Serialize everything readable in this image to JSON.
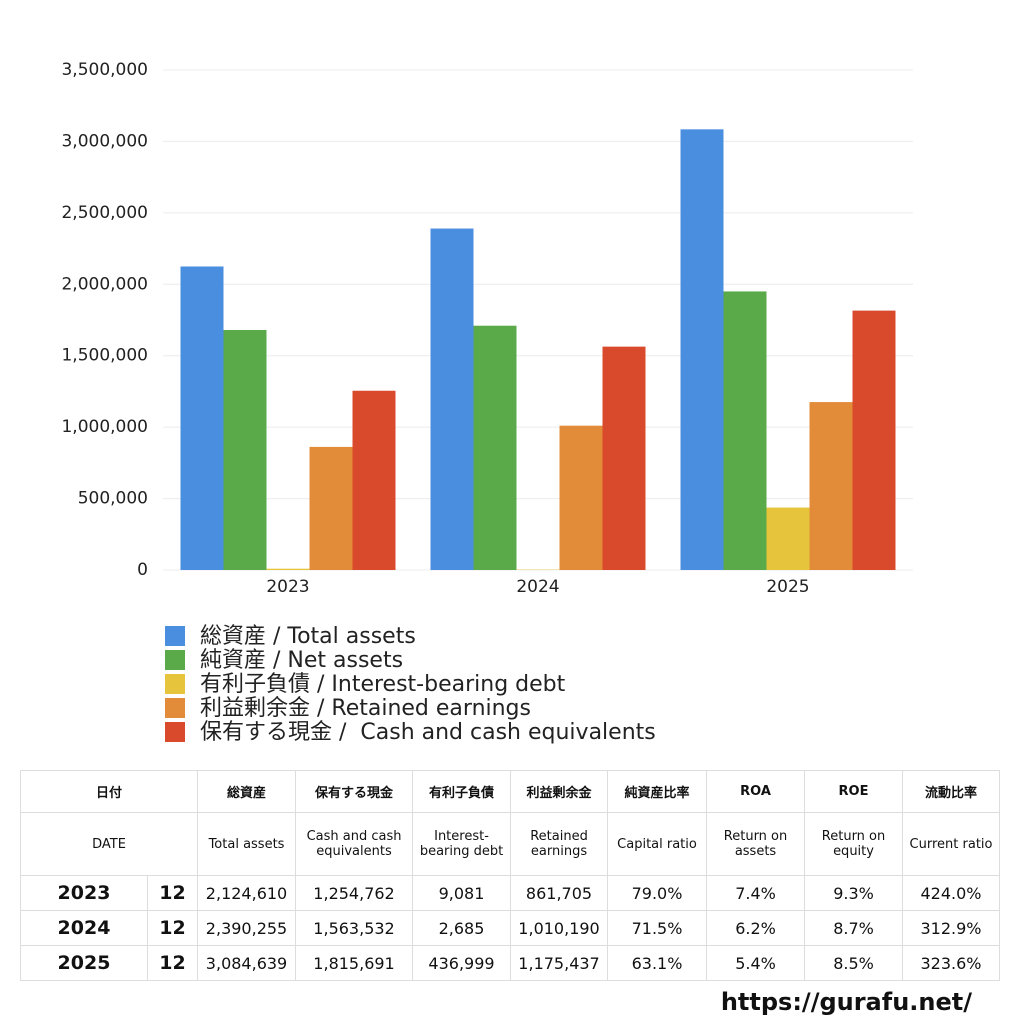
{
  "chart_data": {
    "type": "bar",
    "categories": [
      "2023",
      "2024",
      "2025"
    ],
    "series": [
      {
        "name": "総資産 / Total assets",
        "color": "#4a8ee0",
        "values": [
          2124610,
          2390255,
          3084639
        ]
      },
      {
        "name": "純資産 / Net assets",
        "color": "#5aaa4a",
        "values": [
          1680000,
          1710000,
          1950000
        ]
      },
      {
        "name": "有利子負債 / Interest-bearing debt",
        "color": "#e6c43c",
        "values": [
          9081,
          2685,
          436999
        ]
      },
      {
        "name": "利益剰余金 / Retained earnings",
        "color": "#e28c3a",
        "values": [
          861705,
          1010190,
          1175437
        ]
      },
      {
        "name": "保有する現金 /  Cash and cash equivalents",
        "color": "#d9492b",
        "values": [
          1254762,
          1563532,
          1815691
        ]
      }
    ],
    "ylim": [
      0,
      3500000
    ],
    "yticks": [
      0,
      {
        "value": 500000,
        "label": "500,000"
      },
      {
        "value": 1000000,
        "label": "1,000,000"
      },
      {
        "value": 1500000,
        "label": "1,500,000"
      },
      {
        "value": 2000000,
        "label": "2,000,000"
      },
      {
        "value": 2500000,
        "label": "2,500,000"
      },
      {
        "value": 3000000,
        "label": "3,000,000"
      },
      {
        "value": 3500000,
        "label": "3,500,000"
      }
    ],
    "grid": true
  },
  "table": {
    "header_ja": [
      "日付",
      "総資産",
      "保有する現金",
      "有利子負債",
      "利益剰余金",
      "純資産比率",
      "ROA",
      "ROE",
      "流動比率"
    ],
    "header_en": [
      "DATE",
      "Total assets",
      "Cash and cash equivalents",
      "Interest-bearing debt",
      "Retained earnings",
      "Capital ratio",
      "Return on assets",
      "Return on equity",
      "Current ratio"
    ],
    "rows": [
      [
        "2023",
        "12",
        "2,124,610",
        "1,254,762",
        "9,081",
        "861,705",
        "79.0%",
        "7.4%",
        "9.3%",
        "424.0%"
      ],
      [
        "2024",
        "12",
        "2,390,255",
        "1,563,532",
        "2,685",
        "1,010,190",
        "71.5%",
        "6.2%",
        "8.7%",
        "312.9%"
      ],
      [
        "2025",
        "12",
        "3,084,639",
        "1,815,691",
        "436,999",
        "1,175,437",
        "63.1%",
        "5.4%",
        "8.5%",
        "323.6%"
      ]
    ]
  },
  "footer": "https://gurafu.net/"
}
